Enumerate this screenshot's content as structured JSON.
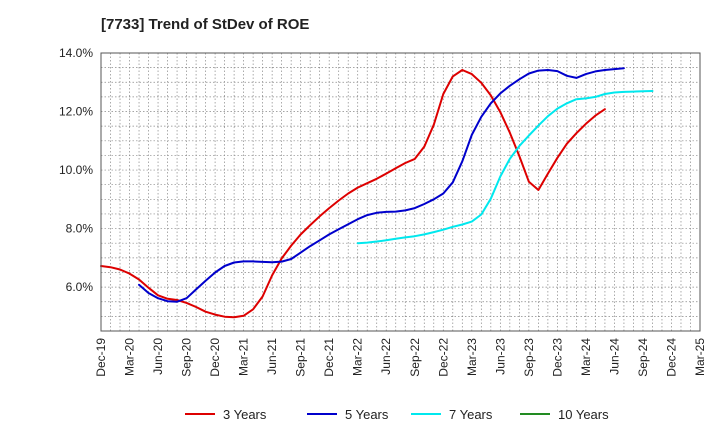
{
  "chart_data": {
    "type": "line",
    "title": "[7733]  Trend of StDev of ROE",
    "xlabel": "",
    "ylabel": "",
    "x_ticks": [
      "Dec-19",
      "Mar-20",
      "Jun-20",
      "Sep-20",
      "Dec-20",
      "Mar-21",
      "Jun-21",
      "Sep-21",
      "Dec-21",
      "Mar-22",
      "Jun-22",
      "Sep-22",
      "Dec-22",
      "Mar-23",
      "Jun-23",
      "Sep-23",
      "Dec-23",
      "Mar-24",
      "Jun-24",
      "Sep-24",
      "Dec-24",
      "Mar-25"
    ],
    "y_ticks": [
      "6.0%",
      "8.0%",
      "10.0%",
      "12.0%",
      "14.0%"
    ],
    "ylim": [
      4.5,
      14.0
    ],
    "grid": true,
    "legend_position": "bottom",
    "series": [
      {
        "name": "3 Years",
        "color": "#dd0000",
        "points": [
          [
            0,
            6.72
          ],
          [
            1,
            6.68
          ],
          [
            2,
            6.6
          ],
          [
            3,
            6.46
          ],
          [
            4,
            6.26
          ],
          [
            5,
            5.98
          ],
          [
            6,
            5.72
          ],
          [
            7,
            5.6
          ],
          [
            8,
            5.56
          ],
          [
            9,
            5.46
          ],
          [
            10,
            5.32
          ],
          [
            11,
            5.16
          ],
          [
            12,
            5.06
          ],
          [
            13,
            4.99
          ],
          [
            14,
            4.97
          ],
          [
            15,
            5.02
          ],
          [
            16,
            5.24
          ],
          [
            17,
            5.68
          ],
          [
            18,
            6.4
          ],
          [
            19,
            6.98
          ],
          [
            20,
            7.42
          ],
          [
            21,
            7.8
          ],
          [
            22,
            8.12
          ],
          [
            23,
            8.42
          ],
          [
            24,
            8.7
          ],
          [
            25,
            8.96
          ],
          [
            26,
            9.2
          ],
          [
            27,
            9.4
          ],
          [
            28,
            9.55
          ],
          [
            29,
            9.7
          ],
          [
            30,
            9.88
          ],
          [
            31,
            10.06
          ],
          [
            32,
            10.24
          ],
          [
            33,
            10.38
          ],
          [
            34,
            10.8
          ],
          [
            35,
            11.55
          ],
          [
            36,
            12.6
          ],
          [
            37,
            13.2
          ],
          [
            38,
            13.42
          ],
          [
            39,
            13.28
          ],
          [
            40,
            12.98
          ],
          [
            41,
            12.55
          ],
          [
            42,
            11.98
          ],
          [
            43,
            11.28
          ],
          [
            44,
            10.48
          ],
          [
            45,
            9.6
          ],
          [
            46,
            9.32
          ],
          [
            47,
            9.88
          ],
          [
            48,
            10.42
          ],
          [
            49,
            10.9
          ],
          [
            50,
            11.26
          ],
          [
            51,
            11.58
          ],
          [
            52,
            11.86
          ],
          [
            53,
            12.08
          ]
        ]
      },
      {
        "name": "5 Years",
        "color": "#0000cc",
        "points": [
          [
            4,
            6.08
          ],
          [
            5,
            5.8
          ],
          [
            6,
            5.62
          ],
          [
            7,
            5.52
          ],
          [
            8,
            5.5
          ],
          [
            9,
            5.62
          ],
          [
            10,
            5.92
          ],
          [
            11,
            6.22
          ],
          [
            12,
            6.5
          ],
          [
            13,
            6.72
          ],
          [
            14,
            6.84
          ],
          [
            15,
            6.88
          ],
          [
            16,
            6.88
          ],
          [
            17,
            6.86
          ],
          [
            18,
            6.85
          ],
          [
            19,
            6.87
          ],
          [
            20,
            6.96
          ],
          [
            21,
            7.18
          ],
          [
            22,
            7.4
          ],
          [
            23,
            7.6
          ],
          [
            24,
            7.8
          ],
          [
            25,
            7.98
          ],
          [
            26,
            8.15
          ],
          [
            27,
            8.32
          ],
          [
            28,
            8.46
          ],
          [
            29,
            8.54
          ],
          [
            30,
            8.57
          ],
          [
            31,
            8.58
          ],
          [
            32,
            8.62
          ],
          [
            33,
            8.7
          ],
          [
            34,
            8.84
          ],
          [
            35,
            9.0
          ],
          [
            36,
            9.2
          ],
          [
            37,
            9.58
          ],
          [
            38,
            10.3
          ],
          [
            39,
            11.2
          ],
          [
            40,
            11.82
          ],
          [
            41,
            12.28
          ],
          [
            42,
            12.62
          ],
          [
            43,
            12.88
          ],
          [
            44,
            13.1
          ],
          [
            45,
            13.3
          ],
          [
            46,
            13.4
          ],
          [
            47,
            13.42
          ],
          [
            48,
            13.38
          ],
          [
            49,
            13.22
          ],
          [
            50,
            13.15
          ],
          [
            51,
            13.28
          ],
          [
            52,
            13.37
          ],
          [
            53,
            13.42
          ],
          [
            54,
            13.45
          ],
          [
            55,
            13.48
          ]
        ]
      },
      {
        "name": "7 Years",
        "color": "#00e8ee",
        "points": [
          [
            27,
            7.5
          ],
          [
            28,
            7.52
          ],
          [
            29,
            7.56
          ],
          [
            30,
            7.6
          ],
          [
            31,
            7.65
          ],
          [
            32,
            7.7
          ],
          [
            33,
            7.74
          ],
          [
            34,
            7.8
          ],
          [
            35,
            7.88
          ],
          [
            36,
            7.96
          ],
          [
            37,
            8.06
          ],
          [
            38,
            8.14
          ],
          [
            39,
            8.24
          ],
          [
            40,
            8.48
          ],
          [
            41,
            9.02
          ],
          [
            42,
            9.78
          ],
          [
            43,
            10.38
          ],
          [
            44,
            10.82
          ],
          [
            45,
            11.18
          ],
          [
            46,
            11.52
          ],
          [
            47,
            11.84
          ],
          [
            48,
            12.1
          ],
          [
            49,
            12.28
          ],
          [
            50,
            12.42
          ],
          [
            51,
            12.45
          ],
          [
            52,
            12.5
          ],
          [
            53,
            12.6
          ],
          [
            54,
            12.65
          ],
          [
            55,
            12.67
          ],
          [
            56,
            12.68
          ],
          [
            57,
            12.69
          ],
          [
            58,
            12.7
          ]
        ]
      },
      {
        "name": "10 Years",
        "color": "#228b22",
        "points": []
      }
    ]
  }
}
